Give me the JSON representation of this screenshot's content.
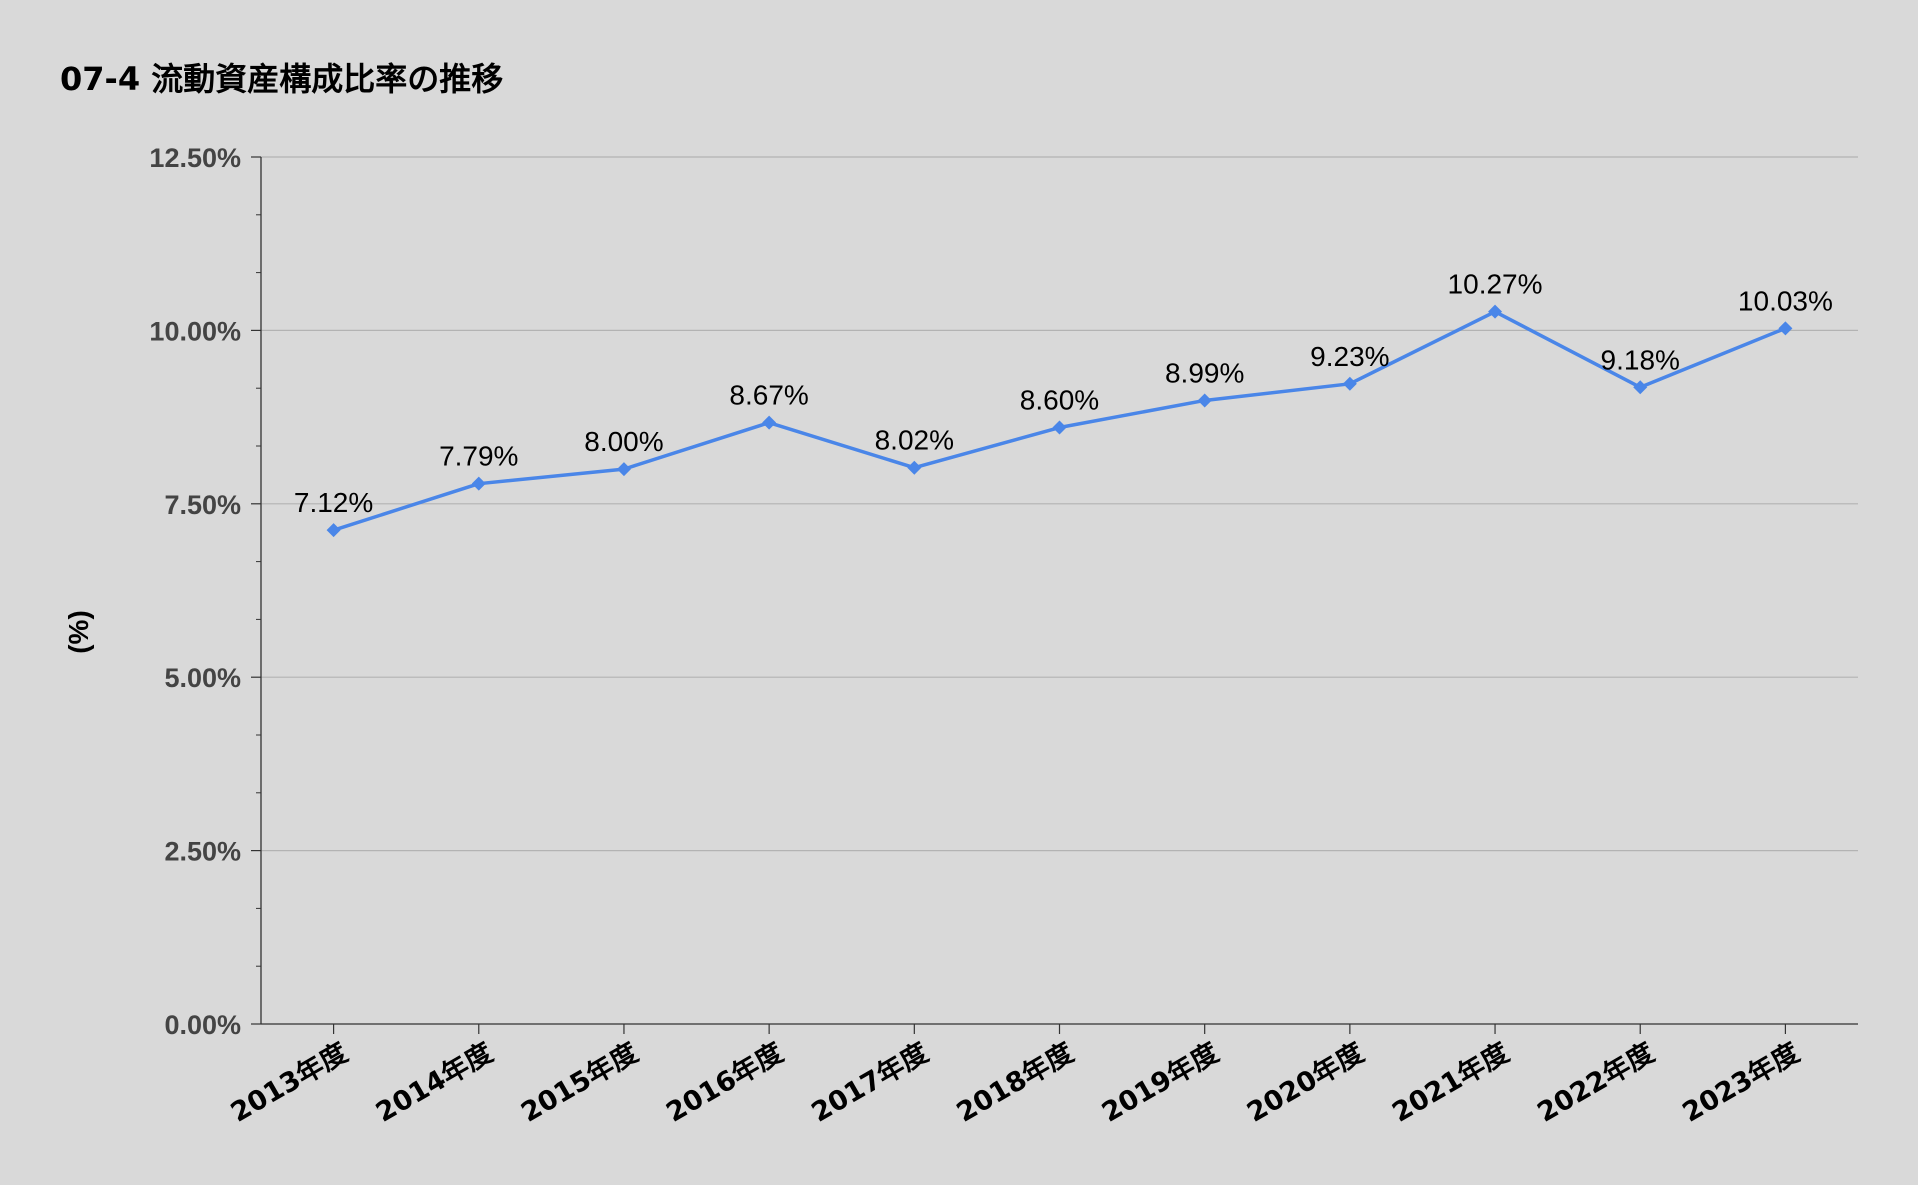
{
  "chart_data": {
    "type": "line",
    "title": "07-4 流動資産構成比率の推移",
    "ylabel": "(%)",
    "xlabel": "",
    "categories": [
      "2013年度",
      "2014年度",
      "2015年度",
      "2016年度",
      "2017年度",
      "2018年度",
      "2019年度",
      "2020年度",
      "2021年度",
      "2022年度",
      "2023年度"
    ],
    "series": [
      {
        "values": [
          7.12,
          7.79,
          8.0,
          8.67,
          8.02,
          8.6,
          8.99,
          9.23,
          10.27,
          9.18,
          10.03
        ],
        "labels": [
          "7.12%",
          "7.79%",
          "8.00%",
          "8.67%",
          "8.02%",
          "8.60%",
          "8.99%",
          "9.23%",
          "10.27%",
          "9.18%",
          "10.03%"
        ],
        "color": "#4a86e8",
        "marker": "diamond"
      }
    ],
    "ylim": [
      0,
      12.5
    ],
    "yticks": [
      0,
      2.5,
      5.0,
      7.5,
      10.0,
      12.5
    ],
    "ytick_labels": [
      "0.00%",
      "2.50%",
      "5.00%",
      "7.50%",
      "10.00%",
      "12.50%"
    ],
    "grid": true,
    "legend": "none",
    "background": "#d9d9d9",
    "gridline_color": "#b3b3b3"
  }
}
